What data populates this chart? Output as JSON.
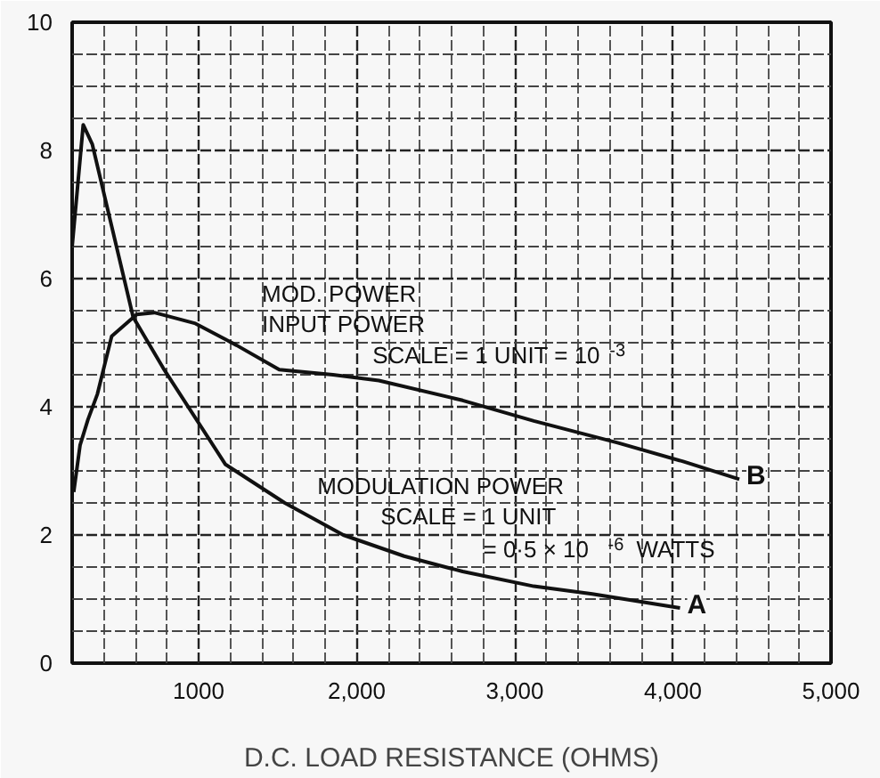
{
  "chart_data": {
    "type": "line",
    "xlabel": "D.C. LOAD RESISTANCE (OHMS)",
    "xlim": [
      200,
      5000
    ],
    "xticks": [
      1000,
      {
        "value": 2000,
        "label": "2,000"
      },
      {
        "value": 3000,
        "label": "3,000"
      },
      {
        "value": 4000,
        "label": "4,000"
      },
      {
        "value": 5000,
        "label": "5,000"
      }
    ],
    "ylim": [
      0,
      10
    ],
    "yticks": [
      0,
      2,
      4,
      6,
      8,
      10
    ],
    "grid": true,
    "marker": "none",
    "line_style": "solid",
    "series": [
      {
        "name": "A",
        "color": "#111111",
        "x": [
          200,
          270,
          327,
          586,
          777,
          1170,
          1545,
          1915,
          2300,
          2670,
          3120,
          3490,
          4045
        ],
        "values": [
          6.5,
          8.4,
          8.1,
          5.4,
          4.6,
          3.1,
          2.5,
          2.0,
          1.67,
          1.43,
          1.2,
          1.08,
          0.86
        ]
      },
      {
        "name": "B",
        "color": "#111111",
        "x": [
          210,
          250,
          300,
          360,
          450,
          608,
          720,
          980,
          1240,
          1510,
          1850,
          2140,
          2670,
          3120,
          3650,
          4060,
          4420
        ],
        "values": [
          2.67,
          3.4,
          3.8,
          4.2,
          5.1,
          5.44,
          5.47,
          5.3,
          4.96,
          4.58,
          4.5,
          4.41,
          4.1,
          3.78,
          3.44,
          3.15,
          2.87
        ]
      }
    ],
    "annotations": [
      "MOD. POWER",
      "INPUT POWER",
      "SCALE = 1 UNIT = 10$^{-3}$",
      "MODULATION POWER",
      "SCALE = 1 UNIT",
      "= 0·5 × 10$^{-6}$ WATTS"
    ]
  }
}
